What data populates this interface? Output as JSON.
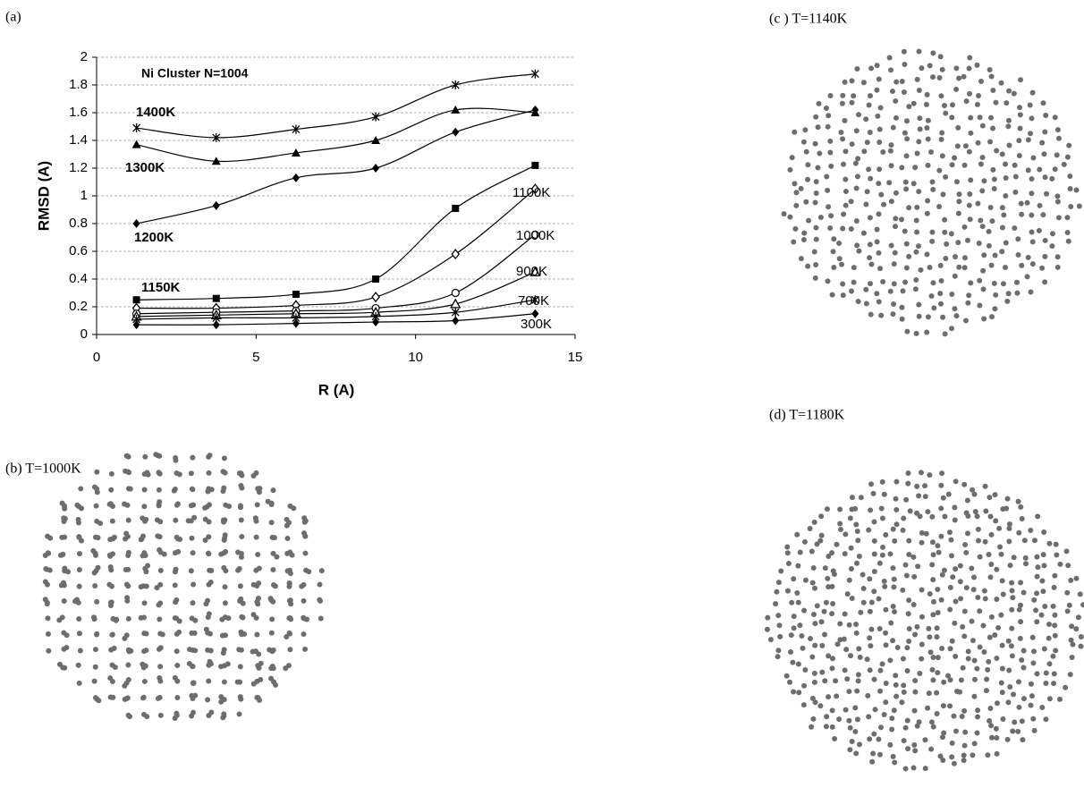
{
  "panels": {
    "a": "(a)",
    "b": "(b) T=1000K",
    "c": "(c ) T=1140K",
    "d": "(d) T=1180K"
  },
  "chart_data": {
    "type": "line",
    "annotation": "Ni Cluster N=1004",
    "x_label": "R (A)",
    "y_label": "RMSD (A)",
    "x": [
      1.25,
      3.75,
      6.25,
      8.75,
      11.25,
      13.75
    ],
    "xlim": [
      0,
      15
    ],
    "xticks": [
      0,
      5,
      10,
      15
    ],
    "ylim": [
      0,
      2
    ],
    "yticks": [
      0,
      0.2,
      0.4,
      0.6,
      0.8,
      1,
      1.2,
      1.4,
      1.6,
      1.8,
      2
    ],
    "grid": true,
    "series": [
      {
        "name": "1400K",
        "color": "#000000",
        "marker": "asterisk",
        "values": [
          1.49,
          1.42,
          1.48,
          1.57,
          1.8,
          1.88
        ]
      },
      {
        "name": "1300K",
        "color": "#000000",
        "marker": "triangle",
        "values": [
          1.37,
          1.25,
          1.31,
          1.4,
          1.62,
          1.6
        ]
      },
      {
        "name": "1200K",
        "color": "#000000",
        "marker": "diamond",
        "values": [
          0.8,
          0.93,
          1.13,
          1.2,
          1.46,
          1.62
        ]
      },
      {
        "name": "1150K",
        "color": "#000000",
        "marker": "square",
        "values": [
          0.25,
          0.26,
          0.29,
          0.4,
          0.91,
          1.22
        ]
      },
      {
        "name": "1100K",
        "color": "#000000",
        "marker": "open-diamond",
        "values": [
          0.19,
          0.19,
          0.21,
          0.27,
          0.58,
          1.05
        ]
      },
      {
        "name": "1000K",
        "color": "#000000",
        "marker": "open-circle",
        "values": [
          0.15,
          0.16,
          0.17,
          0.19,
          0.3,
          0.72
        ]
      },
      {
        "name": "900K",
        "color": "#000000",
        "marker": "open-triangle",
        "values": [
          0.13,
          0.14,
          0.15,
          0.16,
          0.22,
          0.45
        ]
      },
      {
        "name": "700K",
        "color": "#000000",
        "marker": "asterisk",
        "values": [
          0.11,
          0.12,
          0.12,
          0.13,
          0.16,
          0.25
        ]
      },
      {
        "name": "300K",
        "color": "#000000",
        "marker": "diamond",
        "values": [
          0.07,
          0.07,
          0.08,
          0.09,
          0.1,
          0.15
        ]
      }
    ]
  }
}
